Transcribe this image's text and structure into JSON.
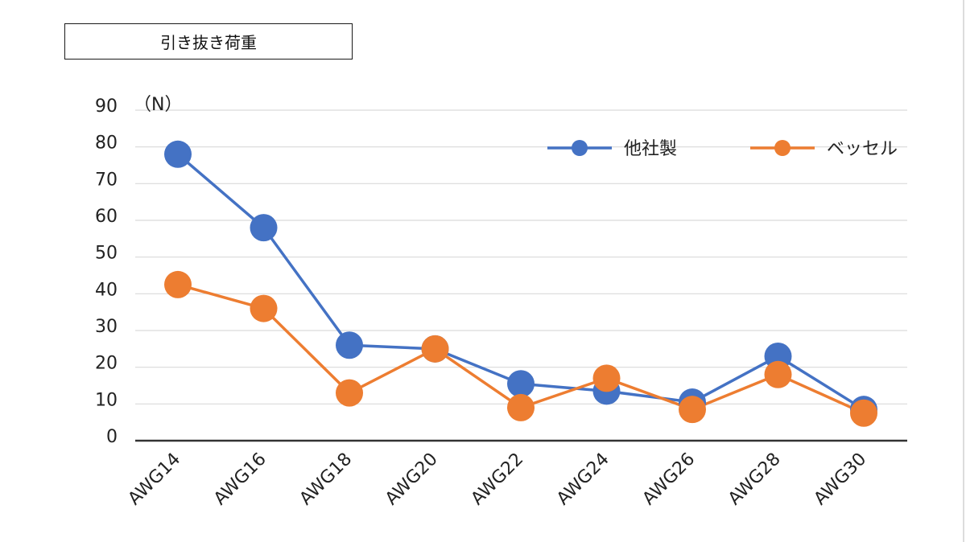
{
  "chart_data": {
    "type": "line",
    "title": "引き抜き荷重",
    "ylabel_unit": "（N）",
    "categories": [
      "AWG14",
      "AWG16",
      "AWG18",
      "AWG20",
      "AWG22",
      "AWG24",
      "AWG26",
      "AWG28",
      "AWG30"
    ],
    "series": [
      {
        "name": "他社製",
        "color": "#4472C4",
        "values": [
          78,
          58,
          26,
          25,
          15.5,
          13.5,
          10.5,
          23,
          8.5
        ]
      },
      {
        "name": "ベッセル",
        "color": "#ED7D31",
        "values": [
          42.5,
          36,
          13,
          25,
          9,
          17,
          8.5,
          18,
          7.5
        ]
      }
    ],
    "ylim": [
      0,
      90
    ],
    "yticks": [
      "0",
      "10",
      "20",
      "30",
      "40",
      "50",
      "60",
      "70",
      "80",
      "90"
    ],
    "grid": true,
    "legend_position": "top-right"
  }
}
